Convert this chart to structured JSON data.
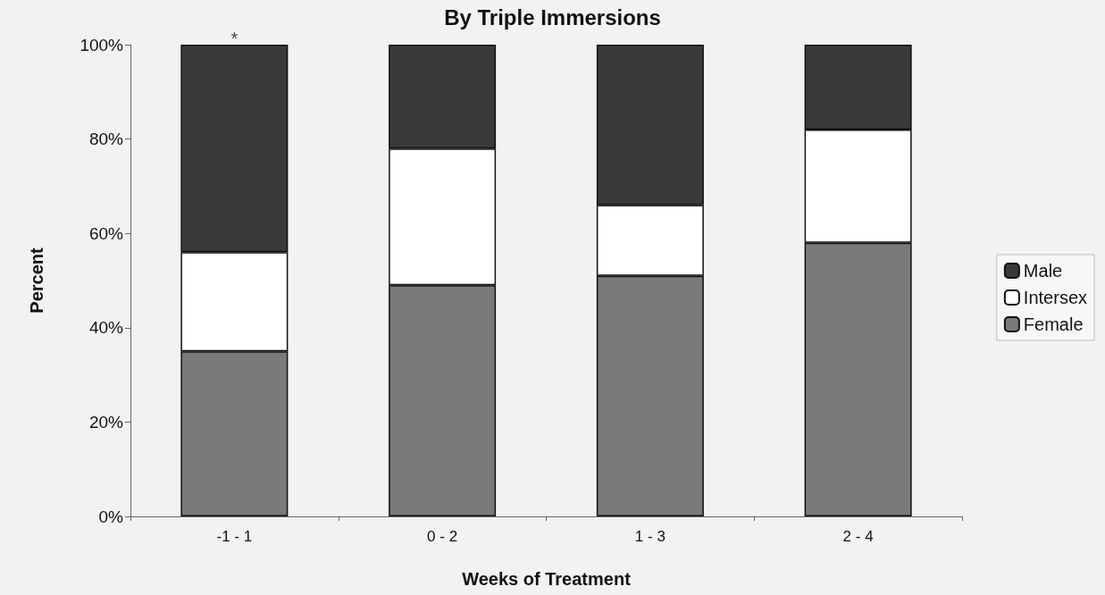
{
  "chart_data": {
    "type": "bar",
    "title": "By Triple Immersions",
    "xlabel": "Weeks of Treatment",
    "ylabel": "Percent",
    "categories": [
      "-1 - 1",
      "0 - 2",
      "1 - 3",
      "2 - 4"
    ],
    "stacked": true,
    "series": [
      {
        "name": "Female",
        "color": "#7a7a7a",
        "values": [
          35,
          49,
          51,
          58
        ]
      },
      {
        "name": "Intersex",
        "color": "#ffffff",
        "values": [
          21,
          29,
          15,
          24
        ]
      },
      {
        "name": "Male",
        "color": "#3a3a3a",
        "values": [
          44,
          22,
          34,
          18
        ]
      }
    ],
    "ylim": [
      0,
      100
    ],
    "yticks": [
      {
        "value": 0,
        "label": "0%"
      },
      {
        "value": 20,
        "label": "20%"
      },
      {
        "value": 40,
        "label": "40%"
      },
      {
        "value": 60,
        "label": "60%"
      },
      {
        "value": 80,
        "label": "80%"
      },
      {
        "value": 100,
        "label": "100%"
      }
    ],
    "annotations": [
      {
        "text": "*",
        "x": "-1 - 1",
        "y": 100
      }
    ],
    "legend": "right"
  }
}
